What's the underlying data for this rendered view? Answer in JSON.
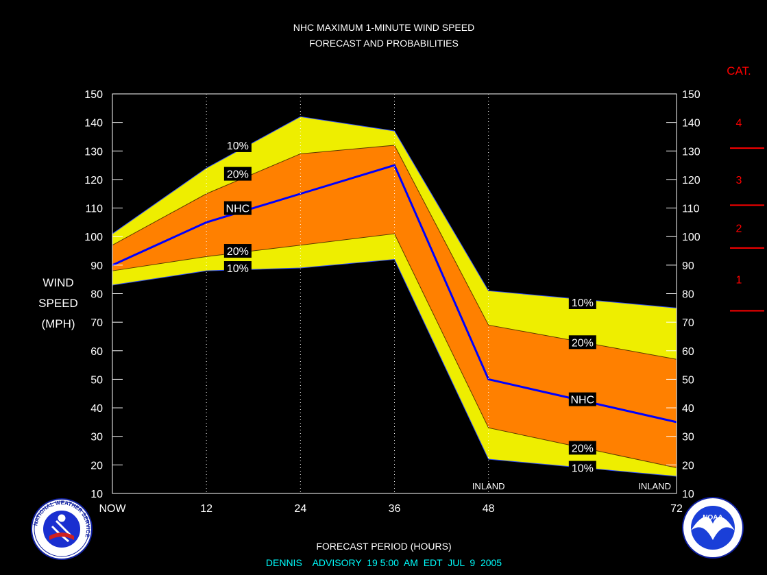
{
  "chart_data": {
    "type": "area",
    "title": "NHC MAXIMUM 1-MINUTE WIND SPEED",
    "subtitle": "FORECAST AND PROBABILITIES",
    "ylabel_lines": [
      "WIND",
      "SPEED",
      "(MPH)"
    ],
    "xlabel": "FORECAST PERIOD (HOURS)",
    "footer": "DENNIS    ADVISORY  19 5:00  AM  EDT  JUL  9  2005",
    "ylim": [
      10,
      150
    ],
    "yticks": [
      "10",
      "20",
      "30",
      "40",
      "50",
      "60",
      "70",
      "80",
      "90",
      "100",
      "110",
      "120",
      "130",
      "140",
      "150"
    ],
    "xlim": [
      0,
      72
    ],
    "xticks": [
      {
        "x": 0,
        "label": "NOW"
      },
      {
        "x": 12,
        "label": "12"
      },
      {
        "x": 24,
        "label": "24"
      },
      {
        "x": 36,
        "label": "36"
      },
      {
        "x": 48,
        "label": "48"
      },
      {
        "x": 72,
        "label": "72"
      }
    ],
    "grid_x": [
      12,
      24,
      36,
      48
    ],
    "x": [
      0,
      12,
      24,
      36,
      48,
      72
    ],
    "series": [
      {
        "name": "10%",
        "role": "upper-10",
        "values": [
          101,
          124,
          142,
          137,
          81,
          75
        ]
      },
      {
        "name": "20%",
        "role": "upper-20",
        "values": [
          97,
          115,
          129,
          132,
          69,
          57
        ]
      },
      {
        "name": "NHC",
        "role": "forecast",
        "values": [
          90,
          105,
          115,
          125,
          50,
          35
        ]
      },
      {
        "name": "20%",
        "role": "lower-20",
        "values": [
          88,
          93,
          97,
          101,
          33,
          19
        ]
      },
      {
        "name": "10%",
        "role": "lower-10",
        "values": [
          83,
          88,
          89,
          92,
          22,
          16
        ]
      }
    ],
    "band_labels": [
      {
        "text": "10%",
        "x": 16,
        "y": 132
      },
      {
        "text": "20%",
        "x": 16,
        "y": 122
      },
      {
        "text": "NHC",
        "x": 16,
        "y": 110
      },
      {
        "text": "20%",
        "x": 16,
        "y": 95
      },
      {
        "text": "10%",
        "x": 16,
        "y": 89
      },
      {
        "text": "10%",
        "x": 60,
        "y": 77
      },
      {
        "text": "20%",
        "x": 60,
        "y": 63
      },
      {
        "text": "NHC",
        "x": 60,
        "y": 43
      },
      {
        "text": "20%",
        "x": 60,
        "y": 26
      },
      {
        "text": "10%",
        "x": 60,
        "y": 19
      }
    ],
    "inland_labels": [
      {
        "text": "INLAND",
        "x": 48
      },
      {
        "text": "INLAND",
        "x": 72
      }
    ],
    "category_title": "CAT.",
    "categories": [
      {
        "label": "4",
        "label_at": 140
      },
      {
        "label": "3",
        "label_at": 120
      },
      {
        "label": "2",
        "label_at": 103
      },
      {
        "label": "1",
        "label_at": 85
      }
    ],
    "category_boundaries": [
      131,
      111,
      96,
      74
    ],
    "colors": {
      "background": "#000000",
      "outer_band": "#EEEE00",
      "inner_band": "#FF8000",
      "forecast_line": "#0000FF",
      "text": "#FFFFFF",
      "category": "#FF0000",
      "footer": "#00FFFF"
    },
    "logos": [
      {
        "name": "nws-logo",
        "text": "NATIONAL WEATHER SERVICE"
      },
      {
        "name": "noaa-logo",
        "text": "NOAA"
      }
    ]
  }
}
